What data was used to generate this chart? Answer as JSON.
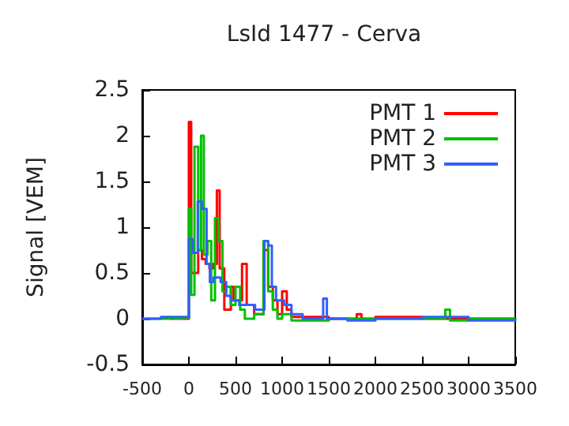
{
  "chart_data": {
    "type": "step",
    "title": "LsId 1477 - Cerva",
    "ylabel": "Signal [VEM]",
    "xlim": [
      -500,
      3500
    ],
    "xticks": [
      -500,
      0,
      500,
      1000,
      1500,
      2000,
      2500,
      3000,
      3500
    ],
    "ylim": [
      -0.5,
      2.5
    ],
    "yticks": [
      -0.5,
      0,
      0.5,
      1,
      1.5,
      2,
      2.5
    ],
    "grid": false,
    "legend": "top right",
    "marker": "none",
    "line_style": "solid",
    "series": [
      {
        "name": "PMT 1",
        "color": "#ff0000",
        "x": [
          -200,
          0,
          25,
          100,
          140,
          180,
          220,
          260,
          300,
          330,
          380,
          450,
          480,
          570,
          620,
          700,
          800,
          850,
          900,
          950,
          1000,
          1050,
          1100,
          1500,
          1800,
          1850,
          2000,
          2500,
          3500
        ],
        "values": [
          0,
          2.15,
          0.5,
          0.75,
          0.65,
          0.6,
          0.55,
          0.6,
          1.4,
          0.55,
          0.1,
          0.35,
          0.2,
          0.6,
          0.15,
          0.05,
          0.75,
          0.35,
          0.2,
          0.05,
          0.3,
          0.1,
          0.02,
          0,
          0.05,
          0,
          0.02,
          0,
          0
        ]
      },
      {
        "name": "PMT 2",
        "color": "#00c000",
        "x": [
          -500,
          -200,
          0,
          25,
          60,
          100,
          130,
          160,
          200,
          240,
          280,
          320,
          360,
          400,
          450,
          500,
          550,
          600,
          700,
          800,
          850,
          900,
          950,
          1000,
          1100,
          1500,
          2750,
          2800,
          3000,
          3500
        ],
        "values": [
          0,
          0.01,
          1.2,
          0.26,
          1.88,
          0.75,
          2.0,
          0.7,
          0.85,
          0.2,
          1.1,
          0.85,
          0.3,
          0.35,
          0.15,
          0.35,
          0.1,
          0,
          0.05,
          0.85,
          0.3,
          0.1,
          0,
          0.05,
          -0.02,
          0,
          0.1,
          -0.02,
          0,
          0
        ]
      },
      {
        "name": "PMT 3",
        "color": "#3060ff",
        "x": [
          -500,
          -300,
          0,
          40,
          95,
          140,
          190,
          225,
          265,
          340,
          400,
          450,
          540,
          710,
          810,
          850,
          890,
          935,
          1020,
          1100,
          1220,
          1440,
          1480,
          1700,
          2000,
          2500,
          3000,
          3500
        ],
        "values": [
          0,
          0.02,
          0.87,
          0.72,
          1.28,
          1.2,
          0.6,
          0.4,
          0.45,
          0.4,
          0.25,
          0.2,
          0.15,
          0.1,
          0.85,
          0.8,
          0.35,
          0.2,
          0.15,
          0.05,
          0,
          0.22,
          0,
          -0.02,
          0,
          0.02,
          -0.02,
          0
        ]
      }
    ]
  }
}
